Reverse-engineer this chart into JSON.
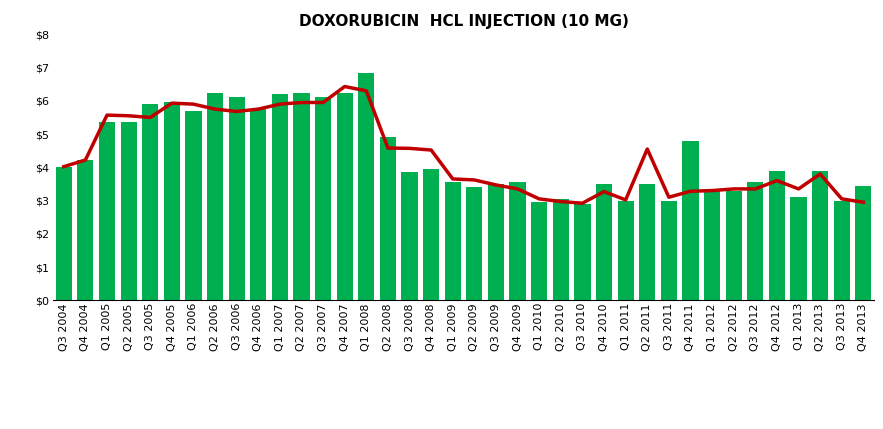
{
  "title": "DOXORUBICIN  HCL INJECTION (10 MG)",
  "categories": [
    "Q3 2004",
    "Q4 2004",
    "Q1 2005",
    "Q2 2005",
    "Q3 2005",
    "Q4 2005",
    "Q1 2006",
    "Q2 2006",
    "Q3 2006",
    "Q4 2006",
    "Q1 2007",
    "Q2 2007",
    "Q3 2007",
    "Q4 2007",
    "Q1 2008",
    "Q2 2008",
    "Q3 2008",
    "Q4 2008",
    "Q1 2009",
    "Q2 2009",
    "Q3 2009",
    "Q4 2009",
    "Q1 2010",
    "Q2 2010",
    "Q3 2010",
    "Q4 2010",
    "Q1 2011",
    "Q2 2011",
    "Q3 2011",
    "Q4 2011",
    "Q1 2012",
    "Q2 2012",
    "Q3 2012",
    "Q4 2012",
    "Q1 2013",
    "Q2 2013",
    "Q3 2013",
    "Q4 2013"
  ],
  "bar_values": [
    4.0,
    4.22,
    5.35,
    5.35,
    5.9,
    5.95,
    5.7,
    6.25,
    6.1,
    5.75,
    6.2,
    6.25,
    6.1,
    6.25,
    6.85,
    4.9,
    3.85,
    3.95,
    3.55,
    3.4,
    3.5,
    3.55,
    2.95,
    3.05,
    2.9,
    3.5,
    3.0,
    3.5,
    3.0,
    4.8,
    3.35,
    3.3,
    3.55,
    3.9,
    3.1,
    3.9,
    3.0,
    3.45
  ],
  "line_values": [
    4.02,
    4.22,
    5.57,
    5.55,
    5.5,
    5.93,
    5.9,
    5.75,
    5.68,
    5.75,
    5.9,
    5.95,
    5.95,
    6.43,
    6.3,
    4.58,
    4.57,
    4.52,
    3.65,
    3.62,
    3.47,
    3.35,
    3.05,
    2.97,
    2.92,
    3.27,
    3.02,
    4.55,
    3.1,
    3.28,
    3.3,
    3.35,
    3.35,
    3.6,
    3.35,
    3.8,
    3.05,
    2.95
  ],
  "bar_color": "#00B050",
  "line_color": "#C00000",
  "ylim": [
    0,
    8
  ],
  "yticks": [
    0,
    1,
    2,
    3,
    4,
    5,
    6,
    7,
    8
  ],
  "ytick_labels": [
    "$0",
    "$1",
    "$2",
    "$3",
    "$4",
    "$5",
    "$6",
    "$7",
    "$8"
  ],
  "background_color": "#FFFFFF",
  "title_fontsize": 11,
  "tick_fontsize": 8,
  "line_width": 2.5
}
